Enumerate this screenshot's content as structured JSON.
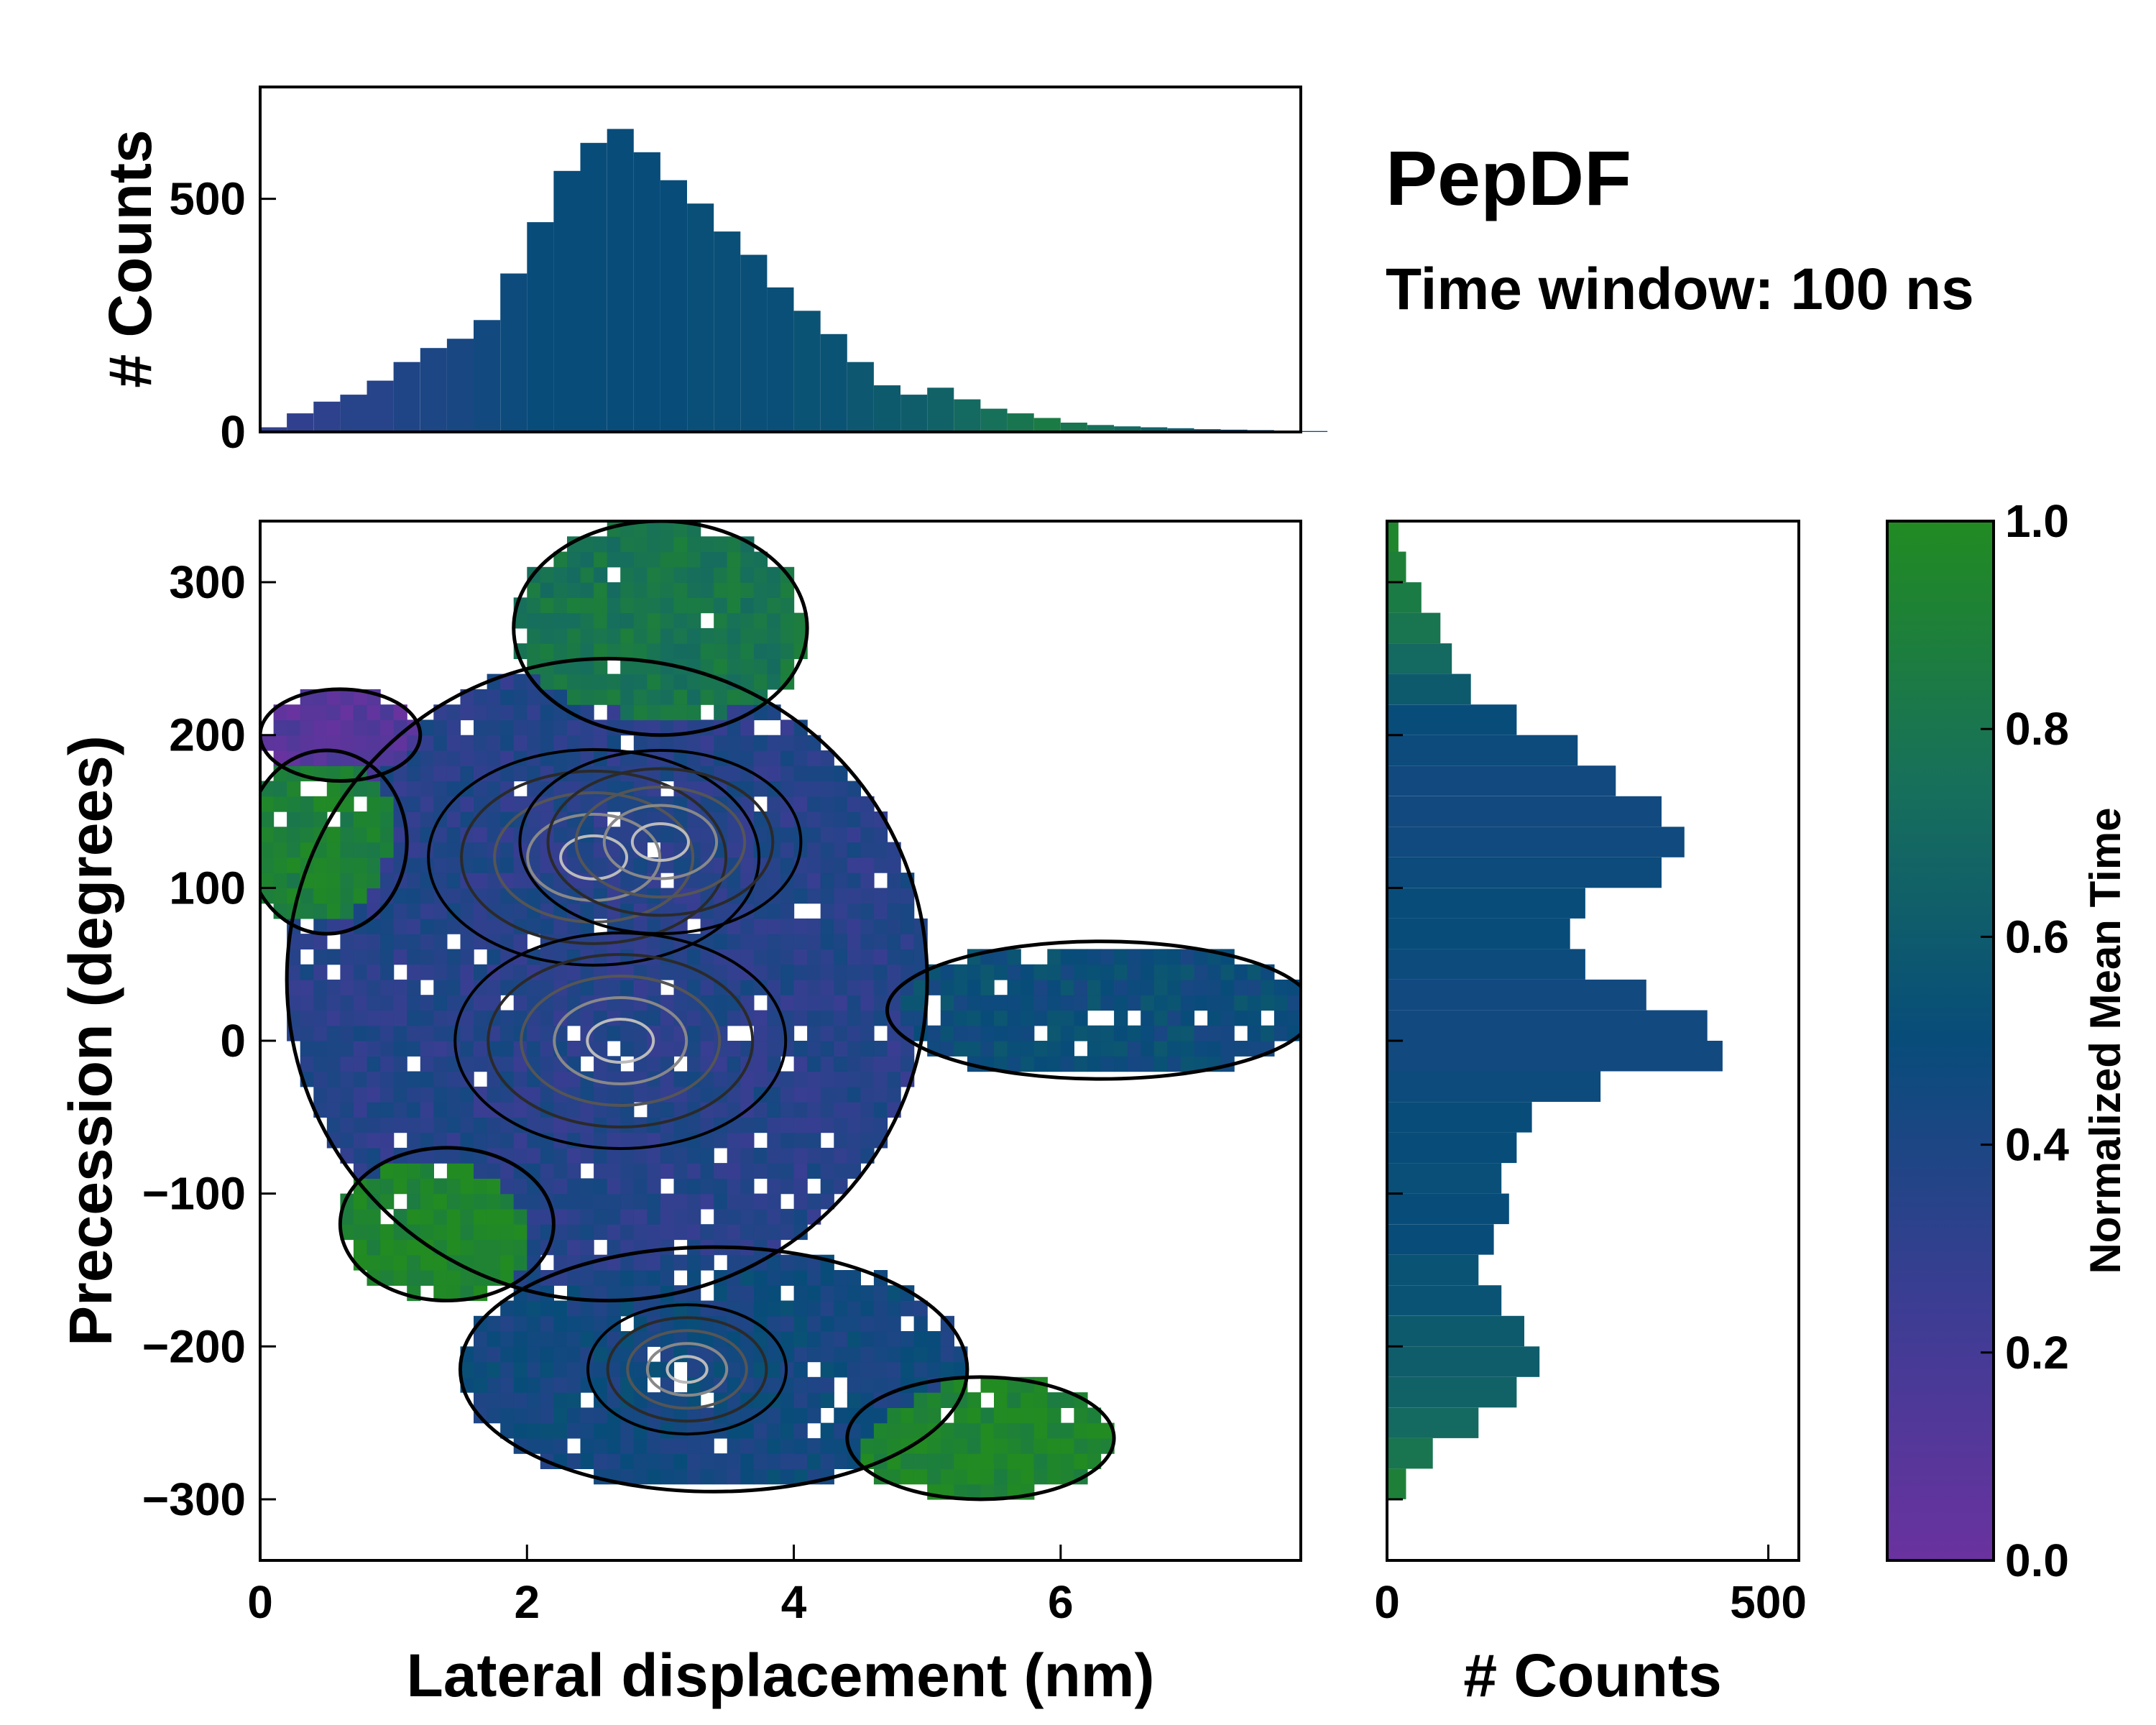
{
  "chart_data": {
    "type": "heatmap",
    "title": "PepDF",
    "subtitle": "Time window: 100 ns",
    "colormap": {
      "label": "Normalized Mean Time",
      "range": [
        0.0,
        1.0
      ],
      "ticks": [
        "0.0",
        "0.2",
        "0.4",
        "0.6",
        "0.8",
        "1.0"
      ],
      "stops": [
        {
          "v": 0.0,
          "color": "#6a329f"
        },
        {
          "v": 0.25,
          "color": "#3b3d93"
        },
        {
          "v": 0.5,
          "color": "#084c7a"
        },
        {
          "v": 0.75,
          "color": "#17705a"
        },
        {
          "v": 1.0,
          "color": "#228b22"
        }
      ]
    },
    "main_panel": {
      "xlabel": "Lateral displacement (nm)",
      "ylabel": "Precession (degrees)",
      "xlim": [
        0,
        7.8
      ],
      "ylim": [
        -340,
        340
      ],
      "xticks": [
        0,
        2,
        4,
        6
      ],
      "xtick_labels": [
        "0",
        "2",
        "4",
        "6"
      ],
      "yticks": [
        -300,
        -200,
        -100,
        0,
        100,
        200,
        300
      ],
      "ytick_labels": [
        "−300",
        "−200",
        "−100",
        "0",
        "100",
        "200",
        "300"
      ],
      "contour_colors": [
        "#000000",
        "#2a2a2a",
        "#555555",
        "#888888",
        "#bbbbbb"
      ],
      "regions": [
        {
          "name": "central",
          "cx": 2.6,
          "cy": 40,
          "rx": 2.4,
          "ry": 210,
          "t": 0.35
        },
        {
          "name": "upper lobe",
          "cx": 3.0,
          "cy": 270,
          "rx": 1.1,
          "ry": 70,
          "t": 0.8
        },
        {
          "name": "right arm",
          "cx": 6.3,
          "cy": 20,
          "rx": 1.6,
          "ry": 45,
          "t": 0.5
        },
        {
          "name": "lower lobe",
          "cx": 3.4,
          "cy": -215,
          "rx": 1.9,
          "ry": 80,
          "t": 0.45
        },
        {
          "name": "lower-right patch",
          "cx": 5.4,
          "cy": -260,
          "rx": 1.0,
          "ry": 40,
          "t": 0.95
        },
        {
          "name": "left-lower patch",
          "cx": 1.4,
          "cy": -120,
          "rx": 0.8,
          "ry": 50,
          "t": 0.95
        },
        {
          "name": "left-upper patch",
          "cx": 0.5,
          "cy": 130,
          "rx": 0.6,
          "ry": 60,
          "t": 0.9
        },
        {
          "name": "top-left corner",
          "cx": 0.6,
          "cy": 200,
          "rx": 0.6,
          "ry": 30,
          "t": 0.1
        }
      ],
      "density_peaks": [
        {
          "x": 2.5,
          "y": 120,
          "level": 1.0
        },
        {
          "x": 3.0,
          "y": 130,
          "level": 0.85
        },
        {
          "x": 2.7,
          "y": 0,
          "level": 1.0
        },
        {
          "x": 3.2,
          "y": -215,
          "level": 0.6
        }
      ]
    },
    "top_histogram": {
      "ylabel": "# Counts",
      "yticks": [
        0,
        500
      ],
      "ytick_labels": [
        "0",
        "500"
      ],
      "ylim": [
        0,
        740
      ],
      "x": [
        0.0,
        0.2,
        0.4,
        0.6,
        0.8,
        1.0,
        1.2,
        1.4,
        1.6,
        1.8,
        2.0,
        2.2,
        2.4,
        2.6,
        2.8,
        3.0,
        3.2,
        3.4,
        3.6,
        3.8,
        4.0,
        4.2,
        4.4,
        4.6,
        4.8,
        5.0,
        5.2,
        5.4,
        5.6,
        5.8,
        6.0,
        6.2,
        6.4,
        6.6,
        6.8,
        7.0,
        7.2,
        7.4,
        7.6,
        7.8
      ],
      "counts": [
        10,
        40,
        65,
        80,
        110,
        150,
        180,
        200,
        240,
        340,
        450,
        560,
        620,
        650,
        600,
        540,
        490,
        430,
        380,
        310,
        260,
        210,
        150,
        100,
        80,
        95,
        70,
        50,
        40,
        30,
        20,
        15,
        12,
        10,
        8,
        6,
        5,
        4,
        3,
        2
      ],
      "mean_time": [
        0.3,
        0.3,
        0.32,
        0.35,
        0.35,
        0.38,
        0.4,
        0.42,
        0.45,
        0.48,
        0.5,
        0.5,
        0.5,
        0.5,
        0.5,
        0.5,
        0.52,
        0.52,
        0.52,
        0.52,
        0.55,
        0.55,
        0.58,
        0.6,
        0.62,
        0.65,
        0.7,
        0.75,
        0.8,
        0.85,
        0.8,
        0.75,
        0.7,
        0.65,
        0.6,
        0.55,
        0.5,
        0.5,
        0.5,
        0.5
      ]
    },
    "right_histogram": {
      "xlabel": "# Counts",
      "xticks": [
        0,
        500
      ],
      "xtick_labels": [
        "0",
        "500"
      ],
      "xlim": [
        0,
        540
      ],
      "y": [
        330,
        310,
        290,
        270,
        250,
        230,
        210,
        190,
        170,
        150,
        130,
        110,
        90,
        70,
        50,
        30,
        10,
        -10,
        -30,
        -50,
        -70,
        -90,
        -110,
        -130,
        -150,
        -170,
        -190,
        -210,
        -230,
        -250,
        -270,
        -290
      ],
      "counts": [
        15,
        25,
        45,
        70,
        85,
        110,
        170,
        250,
        300,
        360,
        390,
        360,
        260,
        240,
        260,
        340,
        420,
        440,
        280,
        190,
        170,
        150,
        160,
        140,
        120,
        150,
        180,
        200,
        170,
        120,
        60,
        25
      ],
      "mean_time": [
        0.95,
        0.9,
        0.85,
        0.8,
        0.7,
        0.6,
        0.5,
        0.48,
        0.45,
        0.45,
        0.46,
        0.48,
        0.5,
        0.5,
        0.48,
        0.45,
        0.45,
        0.45,
        0.48,
        0.5,
        0.5,
        0.52,
        0.5,
        0.5,
        0.55,
        0.55,
        0.6,
        0.62,
        0.65,
        0.7,
        0.8,
        0.9
      ]
    }
  }
}
